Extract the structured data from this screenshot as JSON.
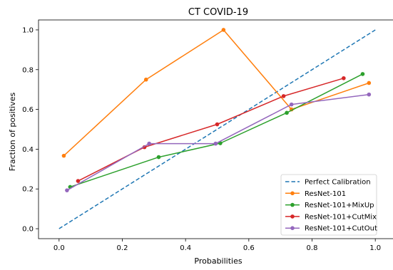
{
  "chart_data": {
    "type": "line",
    "title": "CT COVID-19",
    "xlabel": "Probabilities",
    "ylabel": "Fraction of positives",
    "xlim": [
      -0.065,
      1.065
    ],
    "ylim": [
      -0.05,
      1.05
    ],
    "xticks": [
      0.0,
      0.2,
      0.4,
      0.6,
      0.8,
      1.0
    ],
    "xtick_labels": [
      "0.0",
      "0.2",
      "0.4",
      "0.6",
      "0.8",
      "1.0"
    ],
    "yticks": [
      0.0,
      0.2,
      0.4,
      0.6,
      0.8,
      1.0
    ],
    "ytick_labels": [
      "0.0",
      "0.2",
      "0.4",
      "0.6",
      "0.8",
      "1.0"
    ],
    "grid": false,
    "legend_position": "bottom-right",
    "series": [
      {
        "name": "Perfect Calibration",
        "color": "#1f77b4",
        "style": "dashed",
        "markers": false,
        "x": [
          0.0,
          1.0
        ],
        "y": [
          0.0,
          1.0
        ]
      },
      {
        "name": "ResNet-101",
        "color": "#ff7f0e",
        "style": "solid",
        "markers": true,
        "x": [
          0.015,
          0.275,
          0.52,
          0.735,
          0.98
        ],
        "y": [
          0.367,
          0.75,
          1.0,
          0.6,
          0.733
        ]
      },
      {
        "name": "ResNet-101+MixUp",
        "color": "#2ca02c",
        "style": "solid",
        "markers": true,
        "x": [
          0.035,
          0.315,
          0.51,
          0.72,
          0.96
        ],
        "y": [
          0.21,
          0.36,
          0.43,
          0.583,
          0.778
        ]
      },
      {
        "name": "ResNet-101+CutMix",
        "color": "#d62728",
        "style": "solid",
        "markers": true,
        "x": [
          0.06,
          0.27,
          0.5,
          0.71,
          0.9
        ],
        "y": [
          0.24,
          0.41,
          0.525,
          0.667,
          0.757
        ]
      },
      {
        "name": "ResNet-101+CutOut",
        "color": "#9467bd",
        "style": "solid",
        "markers": true,
        "x": [
          0.025,
          0.285,
          0.495,
          0.735,
          0.98
        ],
        "y": [
          0.193,
          0.428,
          0.428,
          0.625,
          0.675
        ]
      }
    ]
  }
}
